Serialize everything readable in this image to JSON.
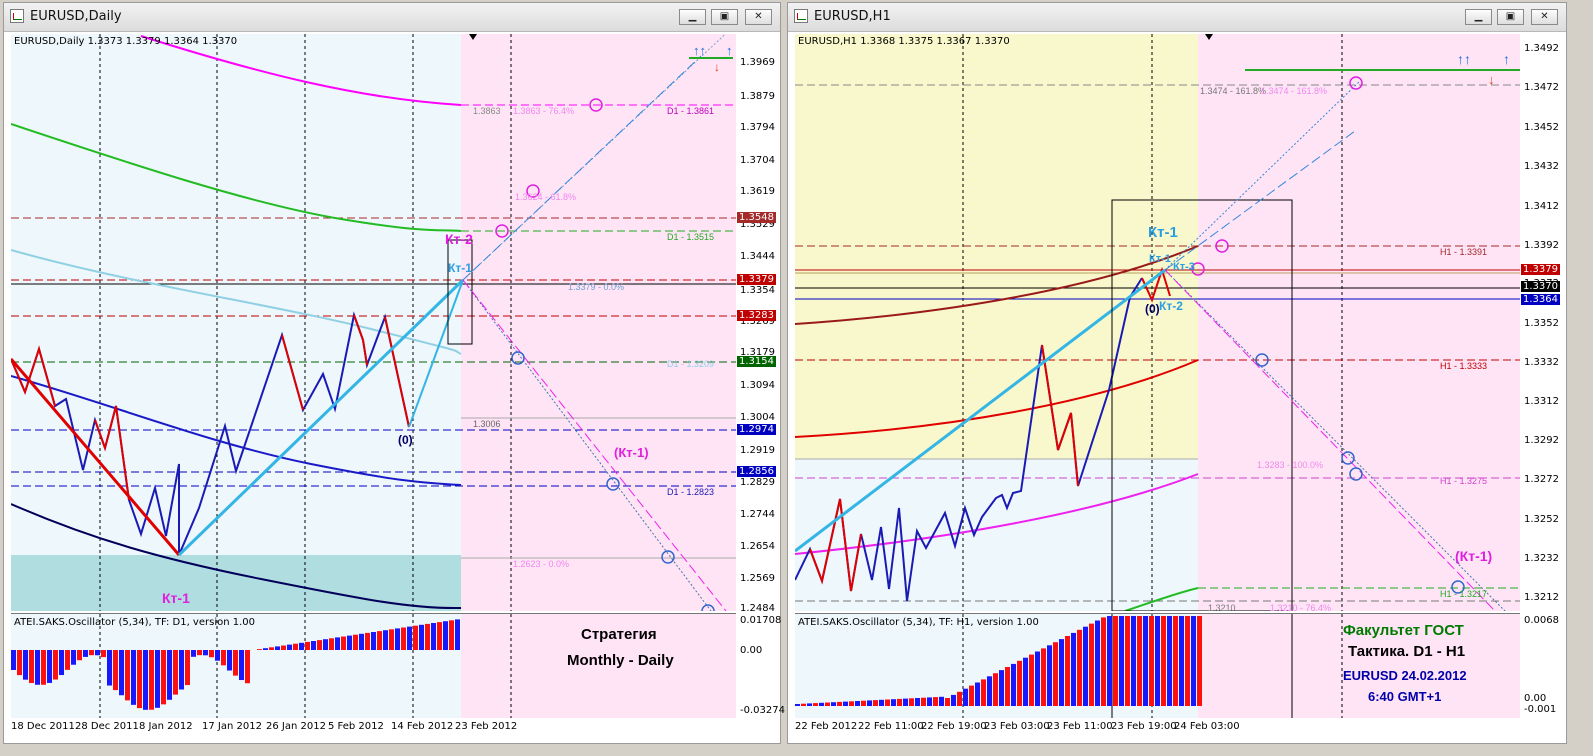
{
  "left_window": {
    "title": "EURUSD,Daily",
    "info": "EURUSD,Daily  1.3373 1.3379 1.3364 1.3370",
    "osc_label": "ATEI.SAKS.Oscillator (5,34), TF: D1, version 1.00",
    "osc_ticks": [
      "0.01708",
      "0.00",
      "-0.03274"
    ],
    "y_ticks": [
      "1.3969",
      "1.3879",
      "1.3794",
      "1.3704",
      "1.3619",
      "1.3529",
      "1.3444",
      "1.3354",
      "1.3269",
      "1.3179",
      "1.3094",
      "1.3004",
      "1.2919",
      "1.2829",
      "1.2744",
      "1.2654",
      "1.2569",
      "1.2484"
    ],
    "price_tags": [
      {
        "text": "1.3548",
        "color": "#a52a2a"
      },
      {
        "text": "1.3379",
        "color": "#c00000"
      },
      {
        "text": "1.3283",
        "color": "#c00000"
      },
      {
        "text": "1.3154",
        "color": "#006400"
      },
      {
        "text": "1.2974",
        "color": "#0000c0"
      },
      {
        "text": "1.2856",
        "color": "#0000c0"
      }
    ],
    "x_ticks": [
      "18 Dec 2011",
      "28 Dec 2011",
      "8 Jan 2012",
      "17 Jan 2012",
      "26 Jan 2012",
      "5 Feb 2012",
      "14 Feb 2012",
      "23 Feb 2012"
    ],
    "level_labels": [
      "1.3863",
      "1.3863 - 76.4%",
      "D1 - 1.3861",
      "1.3624 - 61.8%",
      "D1 - 1.3515",
      "1.3379 - 0.0%",
      "D1 - 1.3209",
      "1.3006",
      "D1 - 1.2823",
      "1.2623 - 0.0%"
    ],
    "annotations": [
      "Кт-2",
      "Кт-1",
      "(0)",
      "(Кт-1)",
      "Кт-1"
    ],
    "strategy_line1": "Стратегия",
    "strategy_line2": "Monthly - Daily"
  },
  "right_window": {
    "title": "EURUSD,H1",
    "info": "EURUSD,H1  1.3368 1.3375 1.3367 1.3370",
    "osc_label": "ATEI.SAKS.Oscillator (5,34), TF: H1, version 1.00",
    "osc_ticks": [
      "0.0068",
      "0.00",
      "-0.001"
    ],
    "y_ticks": [
      "1.3492",
      "1.3472",
      "1.3452",
      "1.3432",
      "1.3412",
      "1.3392",
      "1.3372",
      "1.3352",
      "1.3332",
      "1.3312",
      "1.3292",
      "1.3272",
      "1.3252",
      "1.3232",
      "1.3212"
    ],
    "price_tags": [
      {
        "text": "1.3379",
        "color": "#c00000"
      },
      {
        "text": "1.3370",
        "color": "#000000"
      },
      {
        "text": "1.3364",
        "color": "#0000c0"
      }
    ],
    "x_ticks": [
      "22 Feb 2012",
      "22 Feb 11:00",
      "22 Feb 19:00",
      "23 Feb 03:00",
      "23 Feb 11:00",
      "23 Feb 19:00",
      "24 Feb 03:00"
    ],
    "level_labels": [
      "1.3474 - 161.8%",
      "1.3474 - 161.8%",
      "H1 - 1.3391",
      "H1 - 1.3333",
      "1.3283 - 100.0%",
      "H1 - 1.3275",
      "H1 - 1.3217",
      "1.3210",
      "1.3210 - 76.4%"
    ],
    "annotations": [
      "Кт-1",
      "Кт-1",
      "Кт-3",
      "(0)",
      "Кт-2",
      "(Кт-1)"
    ],
    "faculty_line1": "Факультет ГОСТ",
    "faculty_line2": "Тактика. D1 - H1",
    "faculty_line3": "EURUSD 24.02.2012",
    "faculty_line4": "6:40 GMT+1"
  },
  "icons": {
    "window_icon": "chart-icon",
    "minimize": "minimize-icon",
    "maximize": "maximize-icon",
    "close": "close-icon",
    "buy_signal": "up-arrow-icon",
    "sell_signal": "down-arrow-icon"
  },
  "colors": {
    "bull": "#0000ff",
    "bear": "#ff0000",
    "pink_zone": "#ffe4f6",
    "light_blue_zone": "#eef7fb",
    "yellow_zone": "#f8f8cc"
  }
}
